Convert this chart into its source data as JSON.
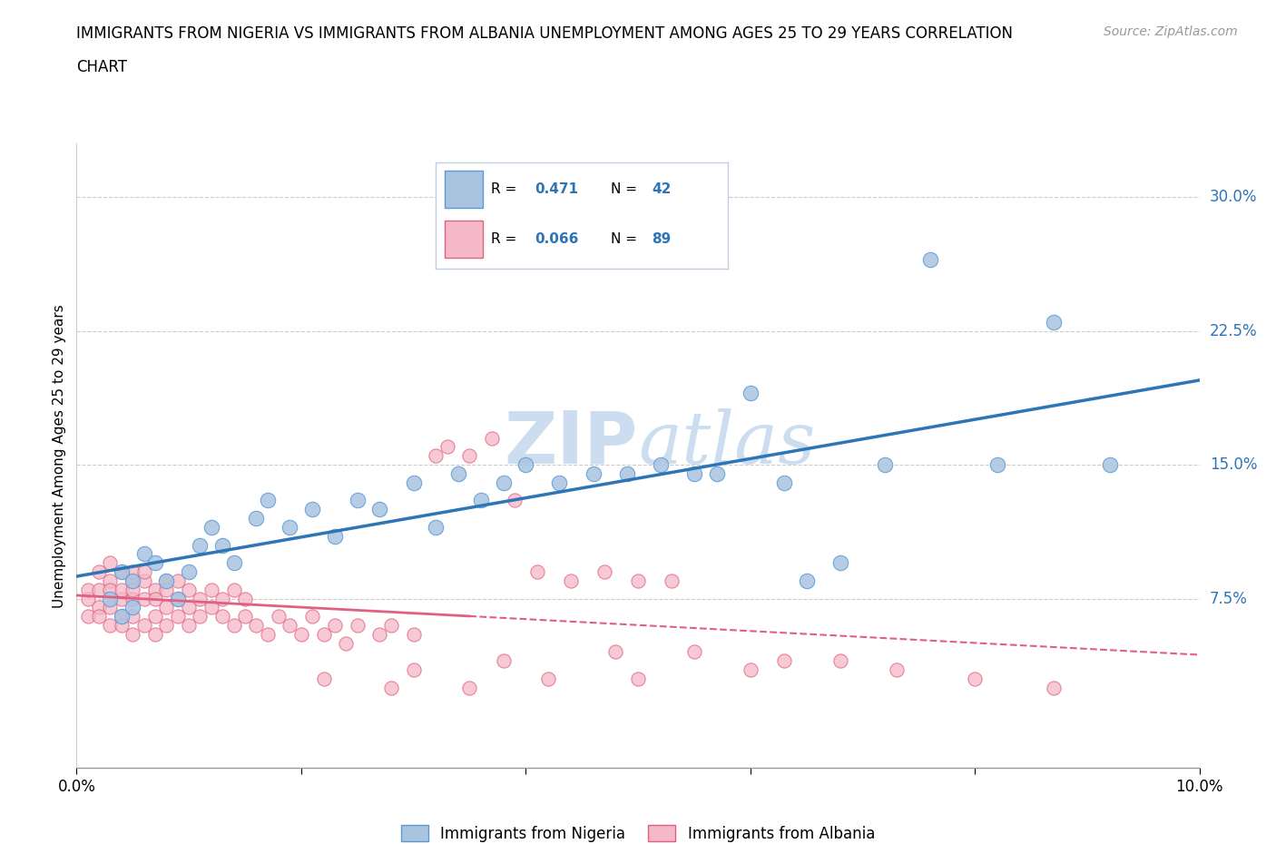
{
  "title_line1": "IMMIGRANTS FROM NIGERIA VS IMMIGRANTS FROM ALBANIA UNEMPLOYMENT AMONG AGES 25 TO 29 YEARS CORRELATION",
  "title_line2": "CHART",
  "source_text": "Source: ZipAtlas.com",
  "ylabel": "Unemployment Among Ages 25 to 29 years",
  "xlim": [
    0.0,
    0.1
  ],
  "ylim": [
    -0.02,
    0.33
  ],
  "ytick_positions": [
    0.075,
    0.15,
    0.225,
    0.3
  ],
  "ytick_labels": [
    "7.5%",
    "15.0%",
    "22.5%",
    "30.0%"
  ],
  "xtick_vals": [
    0.0,
    0.02,
    0.04,
    0.06,
    0.08,
    0.1
  ],
  "xtick_labels": [
    "0.0%",
    "",
    "",
    "",
    "",
    "10.0%"
  ],
  "nigeria_color": "#aac4e0",
  "nigeria_edge_color": "#5b9bd5",
  "nigeria_line_color": "#2e75b6",
  "albania_color": "#f4b8c8",
  "albania_edge_color": "#e06080",
  "albania_line_color": "#e06080",
  "watermark_color": "#ccddf0",
  "legend_box_color": "#e8f0f8",
  "legend_border_color": "#b0c8e0",
  "stat_color": "#2e75b6",
  "nigeria_R": "0.471",
  "nigeria_N": "42",
  "albania_R": "0.066",
  "albania_N": "89",
  "nigeria_x": [
    0.003,
    0.004,
    0.004,
    0.005,
    0.005,
    0.006,
    0.007,
    0.008,
    0.009,
    0.01,
    0.011,
    0.012,
    0.013,
    0.014,
    0.016,
    0.017,
    0.019,
    0.021,
    0.023,
    0.025,
    0.027,
    0.03,
    0.032,
    0.034,
    0.036,
    0.038,
    0.04,
    0.043,
    0.046,
    0.049,
    0.052,
    0.055,
    0.057,
    0.06,
    0.063,
    0.065,
    0.068,
    0.072,
    0.076,
    0.082,
    0.087,
    0.092
  ],
  "nigeria_y": [
    0.075,
    0.09,
    0.065,
    0.085,
    0.07,
    0.1,
    0.095,
    0.085,
    0.075,
    0.09,
    0.105,
    0.115,
    0.105,
    0.095,
    0.12,
    0.13,
    0.115,
    0.125,
    0.11,
    0.13,
    0.125,
    0.14,
    0.115,
    0.145,
    0.13,
    0.14,
    0.15,
    0.14,
    0.145,
    0.145,
    0.15,
    0.145,
    0.145,
    0.19,
    0.14,
    0.085,
    0.095,
    0.15,
    0.265,
    0.15,
    0.23,
    0.15
  ],
  "albania_x": [
    0.001,
    0.001,
    0.001,
    0.002,
    0.002,
    0.002,
    0.002,
    0.003,
    0.003,
    0.003,
    0.003,
    0.003,
    0.004,
    0.004,
    0.004,
    0.004,
    0.004,
    0.005,
    0.005,
    0.005,
    0.005,
    0.005,
    0.005,
    0.006,
    0.006,
    0.006,
    0.006,
    0.007,
    0.007,
    0.007,
    0.007,
    0.008,
    0.008,
    0.008,
    0.008,
    0.009,
    0.009,
    0.009,
    0.01,
    0.01,
    0.01,
    0.011,
    0.011,
    0.012,
    0.012,
    0.013,
    0.013,
    0.014,
    0.014,
    0.015,
    0.015,
    0.016,
    0.017,
    0.018,
    0.019,
    0.02,
    0.021,
    0.022,
    0.023,
    0.024,
    0.025,
    0.027,
    0.028,
    0.03,
    0.032,
    0.033,
    0.035,
    0.037,
    0.039,
    0.041,
    0.044,
    0.047,
    0.05,
    0.053,
    0.022,
    0.028,
    0.035,
    0.042,
    0.05,
    0.06,
    0.063,
    0.068,
    0.073,
    0.08,
    0.087,
    0.048,
    0.055,
    0.038,
    0.03
  ],
  "albania_y": [
    0.075,
    0.08,
    0.065,
    0.09,
    0.07,
    0.08,
    0.065,
    0.085,
    0.095,
    0.07,
    0.08,
    0.06,
    0.075,
    0.09,
    0.065,
    0.08,
    0.06,
    0.085,
    0.075,
    0.09,
    0.065,
    0.08,
    0.055,
    0.085,
    0.075,
    0.06,
    0.09,
    0.08,
    0.065,
    0.075,
    0.055,
    0.085,
    0.07,
    0.08,
    0.06,
    0.075,
    0.065,
    0.085,
    0.07,
    0.08,
    0.06,
    0.075,
    0.065,
    0.07,
    0.08,
    0.065,
    0.075,
    0.06,
    0.08,
    0.065,
    0.075,
    0.06,
    0.055,
    0.065,
    0.06,
    0.055,
    0.065,
    0.055,
    0.06,
    0.05,
    0.06,
    0.055,
    0.06,
    0.055,
    0.155,
    0.16,
    0.155,
    0.165,
    0.13,
    0.09,
    0.085,
    0.09,
    0.085,
    0.085,
    0.03,
    0.025,
    0.025,
    0.03,
    0.03,
    0.035,
    0.04,
    0.04,
    0.035,
    0.03,
    0.025,
    0.045,
    0.045,
    0.04,
    0.035
  ]
}
